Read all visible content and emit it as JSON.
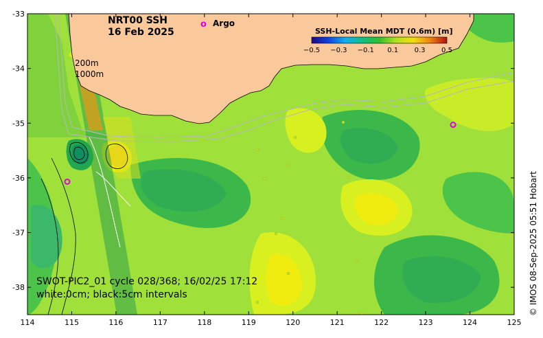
{
  "map": {
    "title_line1": "NRT00 SSH",
    "title_line2": "16 Feb 2025",
    "argo_marker": "o",
    "argo_label": "Argo",
    "depth_label_1": "200m",
    "depth_label_2": "1000m",
    "info_line1": "SWOT-PIC2_01 cycle 028/368; 16/02/25 17:12",
    "info_line2": "white:0cm; black:5cm intervals",
    "credit": "© IMOS 08-Sep-2025 05:51 Hobart",
    "x_ticks": [
      "114",
      "115",
      "116",
      "117",
      "118",
      "119",
      "120",
      "121",
      "122",
      "123",
      "124",
      "125"
    ],
    "y_ticks": [
      "-33",
      "-34",
      "-35",
      "-36",
      "-37",
      "-38"
    ],
    "lon_range": [
      114,
      125
    ],
    "lat_range": [
      -38.5,
      -33
    ],
    "argo_floats": [
      {
        "lon": 114.9,
        "lat": -36.07
      },
      {
        "lon": 123.62,
        "lat": -35.03
      }
    ]
  },
  "colorbar": {
    "title": "SSH-Local Mean MDT (0.6m) [m]",
    "ticks": [
      "−0.5",
      "−0.3",
      "−0.1",
      "0.1",
      "0.3",
      "0.5"
    ],
    "range": [
      -0.5,
      0.5
    ]
  },
  "colors": {
    "land": "#f9c89b",
    "argo": "#e000e0",
    "background_ssh": "#9fe03a"
  }
}
